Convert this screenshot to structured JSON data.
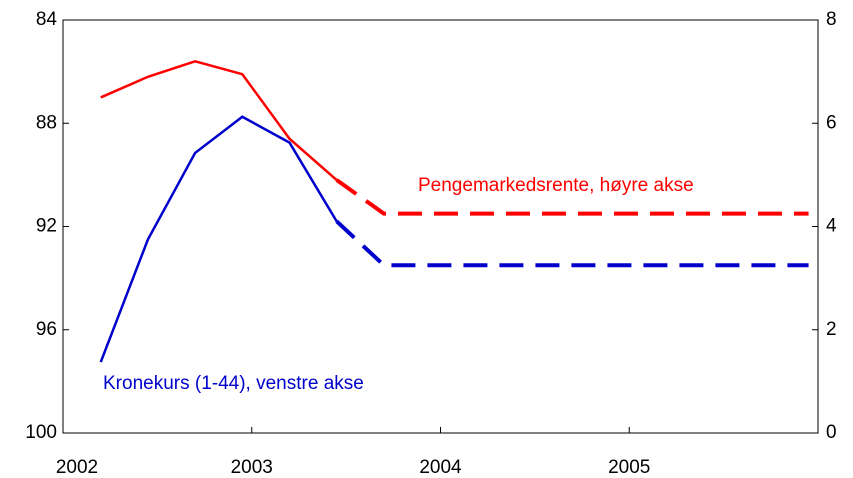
{
  "chart_data": {
    "type": "line",
    "x": [
      2002.2,
      2002.45,
      2002.7,
      2002.95,
      2003.2,
      2003.45,
      2003.7,
      2005.95
    ],
    "xlim": [
      2002,
      2006
    ],
    "xticks": [
      2002,
      2003,
      2004,
      2005
    ],
    "ylim": [
      100,
      84
    ],
    "yticks": [
      84,
      88,
      92,
      96,
      100
    ],
    "y2lim": [
      0,
      8
    ],
    "y2ticks": [
      0,
      2,
      4,
      6,
      8
    ],
    "series": [
      {
        "name": "Pengemarkedsrente, høyre akse",
        "color": "#ff0000",
        "axis": "y2",
        "dashed_from": 5,
        "values": [
          6.5,
          6.9,
          7.2,
          6.95,
          5.7,
          4.9,
          4.25,
          4.25
        ]
      },
      {
        "name": "Kronekurs (1-44), venstre akse",
        "color": "#0000cc",
        "axis": "y",
        "dashed_from": 5,
        "values": [
          97.25,
          92.5,
          89.15,
          87.75,
          88.75,
          91.8,
          93.5,
          93.5
        ]
      }
    ]
  }
}
